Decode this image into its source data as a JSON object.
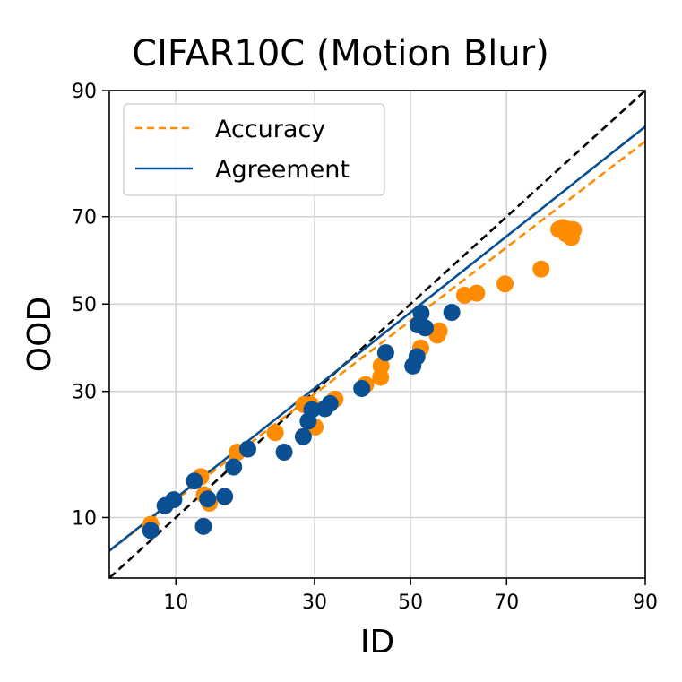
{
  "chart_data": {
    "type": "scatter",
    "title": "CIFAR10C (Motion Blur)",
    "xlabel": "ID",
    "ylabel": "OOD",
    "scale": "probit",
    "xlim": [
      5,
      90
    ],
    "ylim": [
      5,
      90
    ],
    "xticks": [
      10,
      30,
      50,
      70,
      90
    ],
    "yticks": [
      10,
      30,
      50,
      70,
      90
    ],
    "xtick_labels": [
      "10",
      "30",
      "50",
      "70",
      "90"
    ],
    "ytick_labels": [
      "10",
      "30",
      "50",
      "70",
      "90"
    ],
    "grid": true,
    "legend_position": "top-left",
    "series": [
      {
        "name": "Accuracy",
        "color": "#ff8c00",
        "line_style": "dashed",
        "fit": {
          "slope": 0.84,
          "intercept": -0.1
        },
        "points": [
          [
            7.8,
            9.3
          ],
          [
            12.6,
            15.0
          ],
          [
            13.0,
            12.6
          ],
          [
            13.6,
            11.6
          ],
          [
            17.2,
            18.7
          ],
          [
            23.0,
            22.0
          ],
          [
            28.0,
            27.3
          ],
          [
            29.3,
            27.3
          ],
          [
            30.1,
            23.0
          ],
          [
            34.0,
            28.4
          ],
          [
            40.3,
            31.4
          ],
          [
            43.5,
            33.0
          ],
          [
            43.6,
            35.5
          ],
          [
            52.2,
            39.6
          ],
          [
            55.8,
            42.6
          ],
          [
            56.2,
            43.6
          ],
          [
            61.6,
            52.1
          ],
          [
            64.1,
            52.6
          ],
          [
            69.7,
            54.8
          ],
          [
            76.2,
            58.3
          ],
          [
            79.1,
            67.3
          ],
          [
            79.7,
            67.7
          ],
          [
            80.2,
            66.3
          ],
          [
            80.6,
            67.3
          ],
          [
            81.0,
            65.5
          ],
          [
            81.3,
            67.2
          ]
        ]
      },
      {
        "name": "Agreement",
        "color": "#0a4f91",
        "line_style": "solid",
        "fit": {
          "slope": 0.87,
          "intercept": -0.05
        },
        "points": [
          [
            7.8,
            8.7
          ],
          [
            9.0,
            11.3
          ],
          [
            9.8,
            12.0
          ],
          [
            11.9,
            14.4
          ],
          [
            12.9,
            9.1
          ],
          [
            13.4,
            12.1
          ],
          [
            15.5,
            12.4
          ],
          [
            16.7,
            16.4
          ],
          [
            18.7,
            19.2
          ],
          [
            24.5,
            18.7
          ],
          [
            27.9,
            21.3
          ],
          [
            28.8,
            24.1
          ],
          [
            29.5,
            26.3
          ],
          [
            32.0,
            26.5
          ],
          [
            33.0,
            27.5
          ],
          [
            39.5,
            30.6
          ],
          [
            44.6,
            38.5
          ],
          [
            50.5,
            35.5
          ],
          [
            51.4,
            37.6
          ],
          [
            51.6,
            45.0
          ],
          [
            52.3,
            47.8
          ],
          [
            53.2,
            44.3
          ],
          [
            58.9,
            48.0
          ]
        ]
      },
      {
        "name": "",
        "color": "#000000",
        "line_style": "dashed",
        "fit": {
          "slope": 1.0,
          "intercept": 0.0
        }
      }
    ]
  }
}
